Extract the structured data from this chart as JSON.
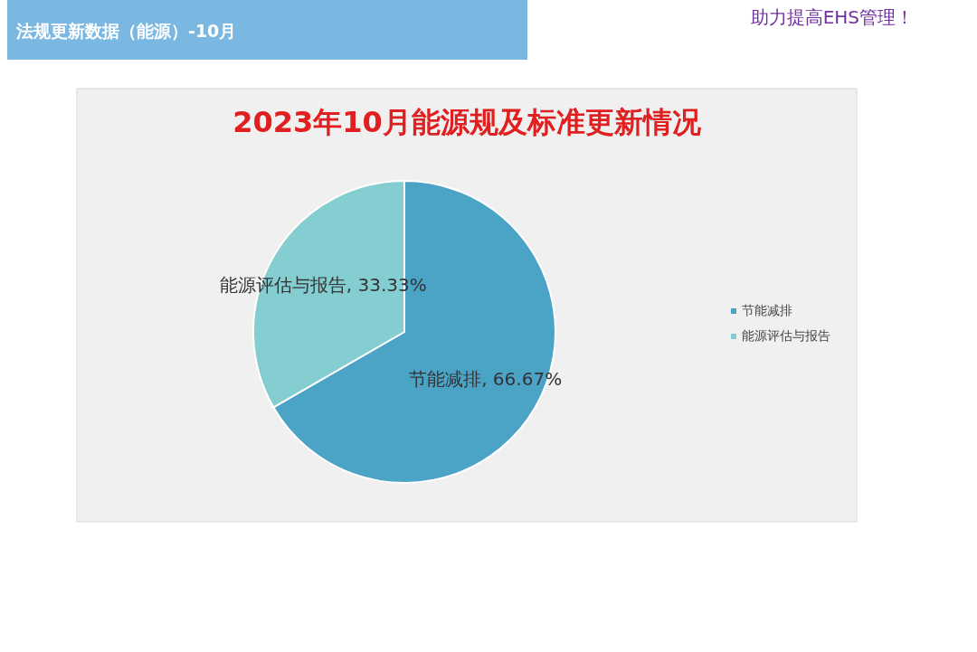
{
  "chart_data": {
    "type": "pie",
    "title": "2023年10月能源规及标准更新情况",
    "categories": [
      "节能减排",
      "能源评估与报告"
    ],
    "values": [
      66.67,
      33.33
    ],
    "colors": [
      "#4ba3c6",
      "#84cdd0"
    ],
    "value_labels": [
      "节能减排, 66.67%",
      "能源评估与报告, 33.33%"
    ],
    "legend": "right",
    "annotations": [
      "法规更新数据（能源）-10月",
      "助力提高EHS管理！"
    ]
  }
}
